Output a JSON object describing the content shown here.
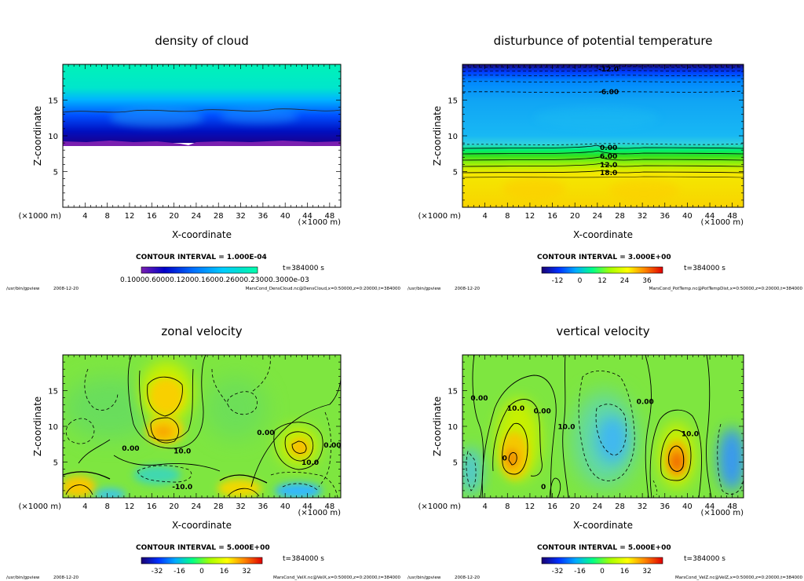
{
  "footer": {
    "program": "/usr/bin/gpview",
    "date": "2008-12-20"
  },
  "chart_data": [
    {
      "type": "heatmap",
      "title": "density of cloud",
      "xlabel": "X-coordinate",
      "ylabel": "Z-coordinate",
      "xunit": "(×1000 m)",
      "yunit": "(×1000 m)",
      "xlim": [
        0,
        50
      ],
      "ylim": [
        0,
        20
      ],
      "xticks": [
        4,
        8,
        12,
        16,
        20,
        24,
        28,
        32,
        36,
        40,
        44,
        48
      ],
      "yticks": [
        5,
        10,
        15
      ],
      "contour_interval": "CONTOUR INTERVAL = 1.000E-04",
      "time": "t=384000 s",
      "colorbar_labels_text": "0.10000.60000.12000.16000.26000.23000.3000e-03",
      "source": "MarsCond_DensCloud.nc@DensCloud,x=0:50000,z=0:20000,t=384000",
      "cloud_base_z": 8.8,
      "contour_z": 13.5,
      "contour_labels": [],
      "colorbar_stops": [
        "#7a1fb0",
        "#0000c8",
        "#0070ff",
        "#00ccff",
        "#00e0d0",
        "#00ffaa"
      ]
    },
    {
      "type": "heatmap",
      "title": "disturbunce of potential temperature",
      "xlabel": "X-coordinate",
      "ylabel": "Z-coordinate",
      "xunit": "(×1000 m)",
      "yunit": "(×1000 m)",
      "xlim": [
        0,
        50
      ],
      "ylim": [
        0,
        20
      ],
      "xticks": [
        4,
        8,
        12,
        16,
        20,
        24,
        28,
        32,
        36,
        40,
        44,
        48
      ],
      "yticks": [
        5,
        10,
        15
      ],
      "contour_interval": "CONTOUR INTERVAL = 3.000E+00",
      "time": "t=384000 s",
      "colorbar_ticks": [
        "-12",
        "0",
        "12",
        "24",
        "36"
      ],
      "source": "MarsCond_PotTemp.nc@PotTempDist,x=0:50000,z=0:20000,t=384000",
      "contour_labels": [
        {
          "text": "-12.0",
          "x": 26,
          "z": 19.4
        },
        {
          "text": "-6.00",
          "x": 26,
          "z": 16.2
        },
        {
          "text": "0.00",
          "x": 26,
          "z": 8.4
        },
        {
          "text": "6.00",
          "x": 26,
          "z": 7.2
        },
        {
          "text": "12.0",
          "x": 26,
          "z": 6.0
        },
        {
          "text": "18.0",
          "x": 26,
          "z": 4.9
        }
      ],
      "colorbar_stops": [
        "#1a0070",
        "#0030ff",
        "#00aaff",
        "#00ff88",
        "#aaff00",
        "#ffff00",
        "#ff8800",
        "#e00000"
      ]
    },
    {
      "type": "heatmap",
      "title": "zonal velocity",
      "xlabel": "X-coordinate",
      "ylabel": "Z-coordinate",
      "xunit": "(×1000 m)",
      "yunit": "(×1000 m)",
      "xlim": [
        0,
        50
      ],
      "ylim": [
        0,
        20
      ],
      "xticks": [
        4,
        8,
        12,
        16,
        20,
        24,
        28,
        32,
        36,
        40,
        44,
        48
      ],
      "yticks": [
        5,
        10,
        15
      ],
      "contour_interval": "CONTOUR INTERVAL = 5.000E+00",
      "time": "t=384000 s",
      "colorbar_ticks": [
        "-32",
        "-16",
        "0",
        "16",
        "32"
      ],
      "source": "MarsCond_VelX.nc@VelX,x=0:50000,z=0:20000,t=384000",
      "contour_labels": [
        {
          "text": "0.00",
          "x": 12.2,
          "z": 7.0
        },
        {
          "text": "10.0",
          "x": 21.5,
          "z": 6.6
        },
        {
          "text": "-10.0",
          "x": 21.5,
          "z": 1.6
        },
        {
          "text": "0.00",
          "x": 36.5,
          "z": 9.2
        },
        {
          "text": "10.0",
          "x": 44.5,
          "z": 5.0
        },
        {
          "text": "0.00",
          "x": 48.5,
          "z": 7.4
        }
      ],
      "colorbar_stops": [
        "#1a0070",
        "#0030ff",
        "#00aaff",
        "#00ff88",
        "#aaff00",
        "#ffff00",
        "#ff8800",
        "#e00000"
      ]
    },
    {
      "type": "heatmap",
      "title": "vertical velocity",
      "xlabel": "X-coordinate",
      "ylabel": "Z-coordinate",
      "xunit": "(×1000 m)",
      "yunit": "(×1000 m)",
      "xlim": [
        0,
        50
      ],
      "ylim": [
        0,
        20
      ],
      "xticks": [
        4,
        8,
        12,
        16,
        20,
        24,
        28,
        32,
        36,
        40,
        44,
        48
      ],
      "yticks": [
        5,
        10,
        15
      ],
      "contour_interval": "CONTOUR INTERVAL = 5.000E+00",
      "time": "t=384000 s",
      "colorbar_ticks": [
        "-32",
        "-16",
        "0",
        "16",
        "32"
      ],
      "source": "MarsCond_VelZ.nc@VelZ,x=0:50000,z=0:20000,t=384000",
      "contour_labels": [
        {
          "text": "0.00",
          "x": 3.0,
          "z": 14.0
        },
        {
          "text": "10.0",
          "x": 9.5,
          "z": 12.6
        },
        {
          "text": "0.00",
          "x": 14.2,
          "z": 12.2
        },
        {
          "text": "10.0",
          "x": 18.5,
          "z": 10.0
        },
        {
          "text": "0.00",
          "x": 32.5,
          "z": 13.5
        },
        {
          "text": "10.0",
          "x": 40.5,
          "z": 9.0
        },
        {
          "text": "0",
          "x": 7.5,
          "z": 5.6
        },
        {
          "text": "0",
          "x": 14.4,
          "z": 1.6
        }
      ],
      "colorbar_stops": [
        "#1a0070",
        "#0030ff",
        "#00aaff",
        "#00ff88",
        "#aaff00",
        "#ffff00",
        "#ff8800",
        "#e00000"
      ]
    }
  ]
}
